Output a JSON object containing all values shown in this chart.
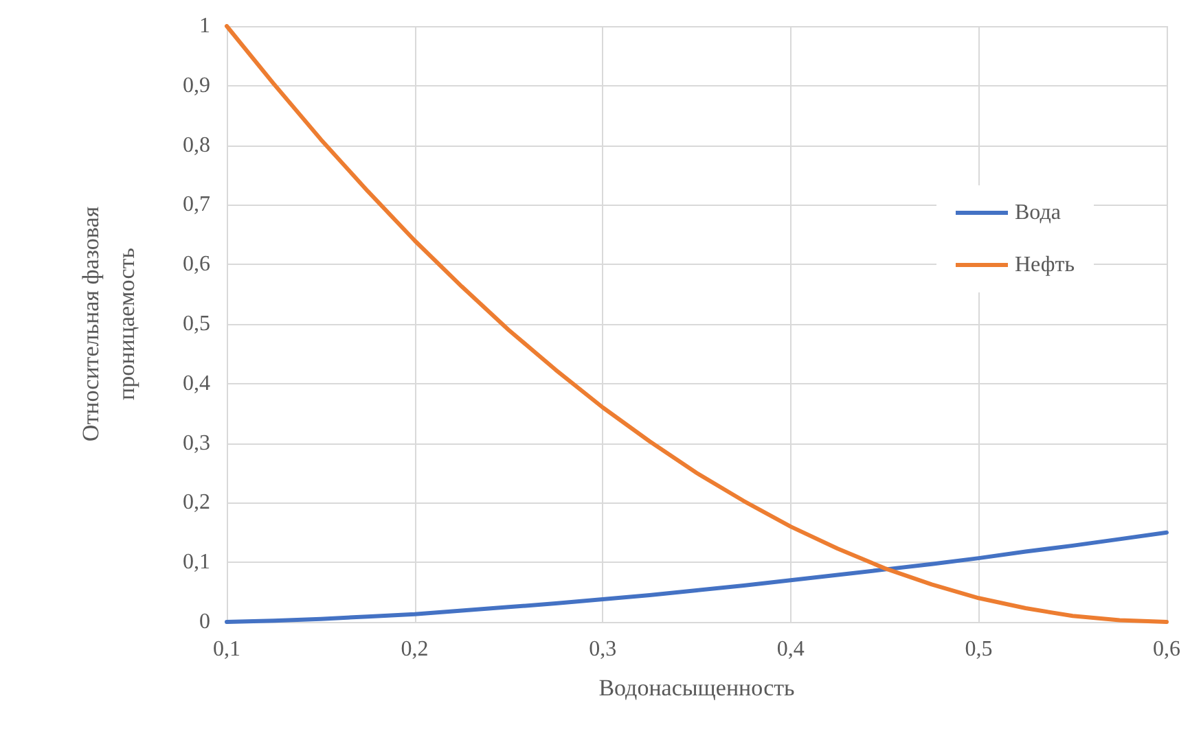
{
  "chart_data": {
    "type": "line",
    "xlabel": "Водонасыщенность",
    "ylabel": "Относительная фазовая\nпроницаемость",
    "x": [
      0.1,
      0.125,
      0.15,
      0.175,
      0.2,
      0.225,
      0.25,
      0.275,
      0.3,
      0.325,
      0.35,
      0.375,
      0.4,
      0.425,
      0.45,
      0.475,
      0.5,
      0.525,
      0.55,
      0.575,
      0.6
    ],
    "series": [
      {
        "name": "Вода",
        "color": "#4472c4",
        "values": [
          0,
          0.002,
          0.005,
          0.009,
          0.013,
          0.019,
          0.025,
          0.031,
          0.038,
          0.045,
          0.053,
          0.061,
          0.07,
          0.079,
          0.088,
          0.097,
          0.107,
          0.118,
          0.128,
          0.139,
          0.15
        ]
      },
      {
        "name": "Нефть",
        "color": "#ed7d31",
        "values": [
          1,
          0.903,
          0.81,
          0.723,
          0.64,
          0.563,
          0.49,
          0.423,
          0.36,
          0.303,
          0.25,
          0.203,
          0.16,
          0.123,
          0.09,
          0.063,
          0.04,
          0.023,
          0.01,
          0.003,
          0
        ]
      }
    ],
    "xlim": [
      0.1,
      0.6
    ],
    "xticks": [
      {
        "value": 0.1,
        "label": "0,1"
      },
      {
        "value": 0.2,
        "label": "0,2"
      },
      {
        "value": 0.3,
        "label": "0,3"
      },
      {
        "value": 0.4,
        "label": "0,4"
      },
      {
        "value": 0.5,
        "label": "0,5"
      },
      {
        "value": 0.6,
        "label": "0,6"
      }
    ],
    "ylim": [
      0,
      1
    ],
    "yticks": [
      0,
      {
        "value": 0.1,
        "label": "0,1"
      },
      {
        "value": 0.2,
        "label": "0,2"
      },
      {
        "value": 0.3,
        "label": "0,3"
      },
      {
        "value": 0.4,
        "label": "0,4"
      },
      {
        "value": 0.5,
        "label": "0,5"
      },
      {
        "value": 0.6,
        "label": "0,6"
      },
      {
        "value": 0.7,
        "label": "0,7"
      },
      {
        "value": 0.8,
        "label": "0,8"
      },
      {
        "value": 0.9,
        "label": "0,9"
      },
      1
    ],
    "grid": true,
    "legend": "right",
    "marker": "none",
    "line_style": "solid"
  }
}
